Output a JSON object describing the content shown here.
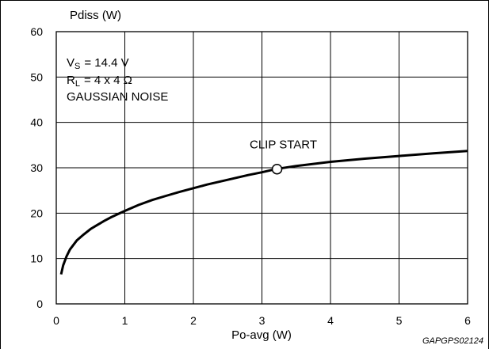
{
  "chart_data": {
    "type": "line",
    "ylabel": "Pdiss (W)",
    "xlabel": "Po-avg (W)",
    "xlim": [
      0,
      6
    ],
    "ylim": [
      0,
      60
    ],
    "xticks": [
      "0",
      "1",
      "2",
      "3",
      "4",
      "5",
      "6"
    ],
    "yticks": [
      "0",
      "10",
      "20",
      "30",
      "40",
      "50",
      "60"
    ],
    "grid": true,
    "conditions": {
      "vs": {
        "symbol": "V",
        "sub": "S",
        "value": "= 14.4 V"
      },
      "rl": {
        "symbol": "R",
        "sub": "L",
        "value": "= 4 x 4 Ω"
      },
      "signal": "GAUSSIAN NOISE"
    },
    "annotation": {
      "text": "CLIP START",
      "x": 3.22,
      "y": 29.7
    },
    "series": [
      {
        "x": [
          0.07,
          0.1,
          0.15,
          0.2,
          0.3,
          0.4,
          0.5,
          0.6,
          0.7,
          0.8,
          0.9,
          1.0,
          1.2,
          1.4,
          1.6,
          1.8,
          2.0,
          2.2,
          2.4,
          2.6,
          2.8,
          3.0,
          3.2,
          3.5,
          4.0,
          4.5,
          5.0,
          5.5,
          6.0
        ],
        "y": [
          6.5,
          8.5,
          10.5,
          12.0,
          14.0,
          15.3,
          16.5,
          17.4,
          18.3,
          19.1,
          19.8,
          20.5,
          21.8,
          22.9,
          23.8,
          24.7,
          25.5,
          26.3,
          27.0,
          27.7,
          28.4,
          29.0,
          29.7,
          30.4,
          31.3,
          32.0,
          32.6,
          33.2,
          33.7
        ]
      }
    ]
  },
  "footer": {
    "code": "GAPGPS02124"
  }
}
